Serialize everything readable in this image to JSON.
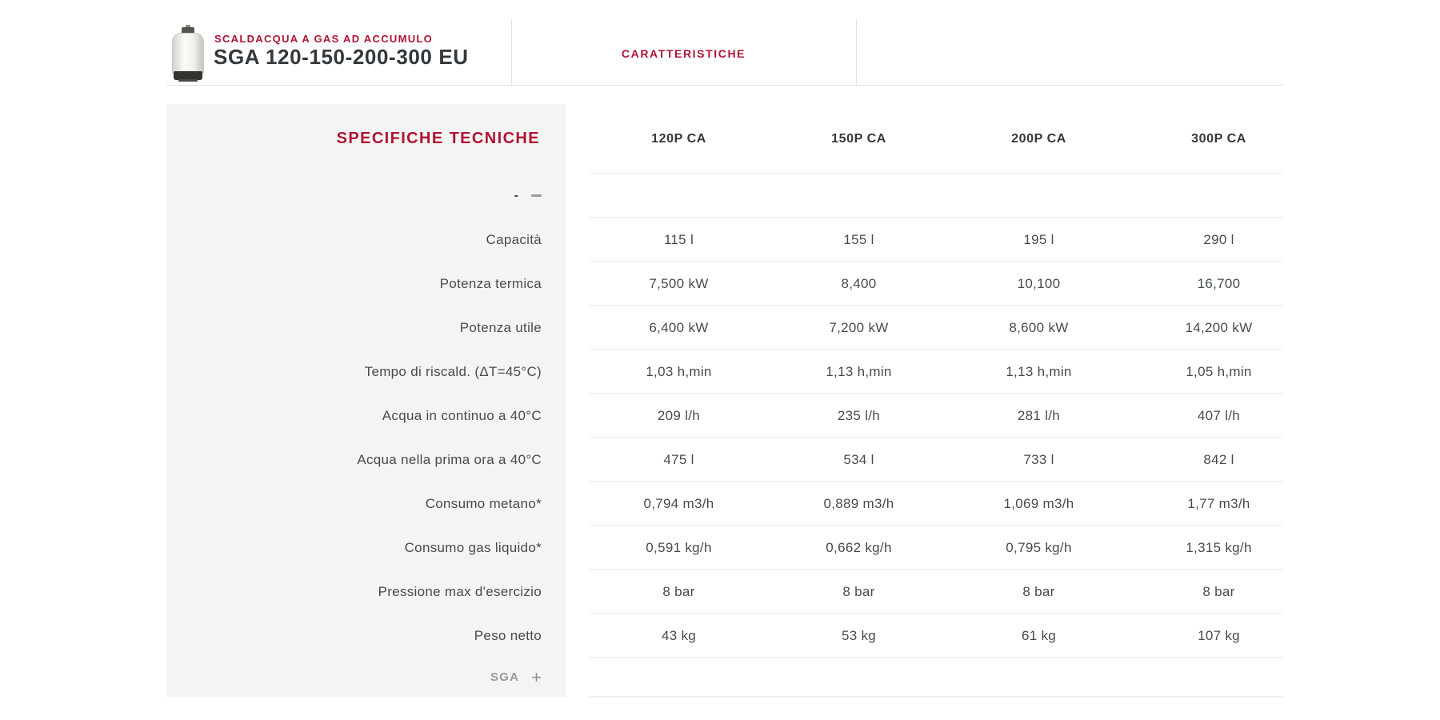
{
  "header": {
    "category": "SCALDACQUA A GAS AD ACCUMULO",
    "title": "SGA 120-150-200-300 EU",
    "tab": "CARATTERISTICHE"
  },
  "sidebar": {
    "title": "SPECIFICHE TECNICHE",
    "collapse_minus": "-",
    "footer_label": "SGA",
    "footer_plus": "+"
  },
  "table": {
    "columns": [
      "120P CA",
      "150P CA",
      "200P CA",
      "300P CA"
    ],
    "rows": [
      {
        "label": "Capacità",
        "values": [
          "115 l",
          "155 l",
          "195 l",
          "290 l"
        ]
      },
      {
        "label": "Potenza termica",
        "values": [
          "7,500 kW",
          "8,400",
          "10,100",
          "16,700"
        ]
      },
      {
        "label": "Potenza utile",
        "values": [
          "6,400 kW",
          "7,200 kW",
          "8,600 kW",
          "14,200 kW"
        ]
      },
      {
        "label": "Tempo di riscald. (ΔT=45°C)",
        "values": [
          "1,03 h,min",
          "1,13 h,min",
          "1,13 h,min",
          "1,05 h,min"
        ]
      },
      {
        "label": "Acqua in continuo a 40°C",
        "values": [
          "209 l/h",
          "235 l/h",
          "281 l/h",
          "407 l/h"
        ]
      },
      {
        "label": "Acqua nella prima ora a 40°C",
        "values": [
          "475 l",
          "534 l",
          "733 l",
          "842 l"
        ]
      },
      {
        "label": "Consumo metano*",
        "values": [
          "0,794 m3/h",
          "0,889 m3/h",
          "1,069 m3/h",
          "1,77 m3/h"
        ]
      },
      {
        "label": "Consumo gas liquido*",
        "values": [
          "0,591 kg/h",
          "0,662 kg/h",
          "0,795 kg/h",
          "1,315 kg/h"
        ]
      },
      {
        "label": "Pressione max d'esercizio",
        "values": [
          "8 bar",
          "8 bar",
          "8 bar",
          "8 bar"
        ]
      },
      {
        "label": "Peso netto",
        "values": [
          "43 kg",
          "53 kg",
          "61 kg",
          "107 kg"
        ]
      }
    ]
  },
  "colors": {
    "accent_red": "#b01334",
    "text_dark": "#33383c",
    "text_body": "#474b4e",
    "muted_gray": "#97999b",
    "sidebar_bg": "#f4f4f3",
    "separator": "#ececec"
  }
}
